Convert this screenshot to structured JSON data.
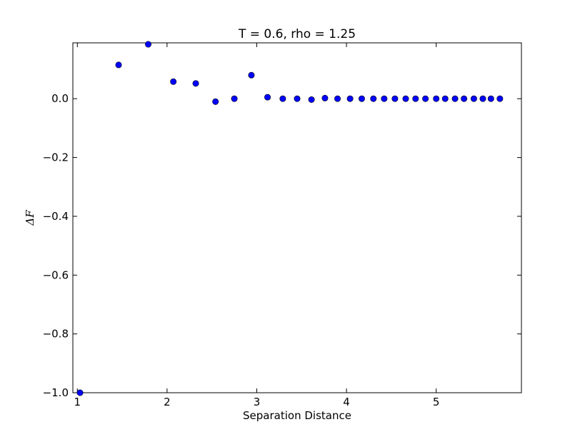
{
  "chart_data": {
    "type": "scatter",
    "title": "T = 0.6, rho = 1.25",
    "xlabel": "Separation Distance",
    "ylabel": "ΔF",
    "xlim": [
      0.95,
      5.95
    ],
    "ylim": [
      -1.0,
      0.19
    ],
    "xticks": [
      1,
      2,
      3,
      4,
      5
    ],
    "yticks": [
      0.0,
      -0.2,
      -0.4,
      -0.6,
      -0.8,
      -1.0
    ],
    "ytick_labels": [
      "0.0",
      "−0.2",
      "−0.4",
      "−0.6",
      "−0.8",
      "−1.0"
    ],
    "grid": false,
    "legend": false,
    "marker_color": "#0000ff",
    "series": [
      {
        "x": [
          1.03,
          1.46,
          1.79,
          2.07,
          2.32,
          2.54,
          2.75,
          2.94,
          3.12,
          3.29,
          3.45,
          3.61,
          3.76,
          3.9,
          4.04,
          4.17,
          4.3,
          4.42,
          4.54,
          4.66,
          4.77,
          4.88,
          5.0,
          5.1,
          5.21,
          5.31,
          5.42,
          5.52,
          5.61,
          5.71
        ],
        "y": [
          -1.0,
          0.115,
          0.185,
          0.058,
          0.052,
          -0.01,
          0.0,
          0.08,
          0.005,
          0.0,
          0.0,
          -0.003,
          0.002,
          0.0,
          0.0,
          0.0,
          0.0,
          0.0,
          0.0,
          0.0,
          0.0,
          0.0,
          0.0,
          0.0,
          0.0,
          0.0,
          0.0,
          0.0,
          0.0,
          0.0
        ]
      }
    ]
  }
}
